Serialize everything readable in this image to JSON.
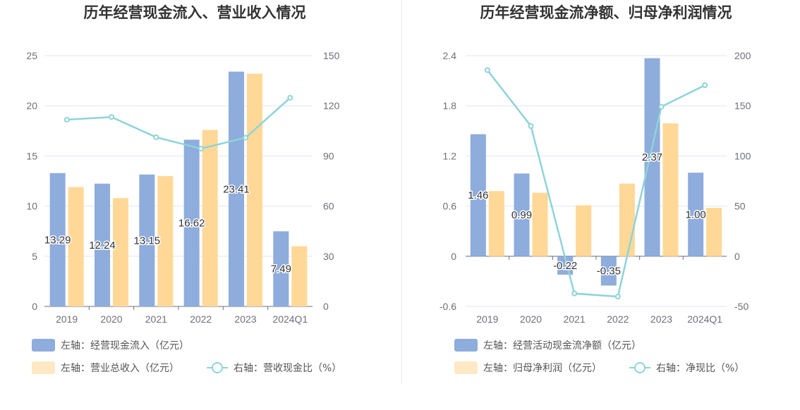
{
  "chart_data": [
    {
      "type": "bar",
      "title": "历年经营现金流入、营业收入情况",
      "categories": [
        "2019",
        "2020",
        "2021",
        "2022",
        "2023",
        "2024Q1"
      ],
      "y_left": {
        "min": 0,
        "max": 25,
        "ticks": [
          0,
          5,
          10,
          15,
          20,
          25
        ]
      },
      "y_right": {
        "min": 0,
        "max": 150,
        "ticks": [
          0,
          30,
          60,
          90,
          120,
          150
        ]
      },
      "grid": true,
      "legend_position": "bottom-left",
      "series": [
        {
          "name": "左轴：经营现金流入（亿元）",
          "kind": "bar",
          "axis": "left",
          "color": "#8eacdc",
          "values": [
            13.29,
            12.24,
            13.15,
            16.62,
            23.41,
            7.49
          ],
          "show_labels": true,
          "labels": [
            "13.29",
            "12.24",
            "13.15",
            "16.62",
            "23.41",
            "7.49"
          ]
        },
        {
          "name": "左轴：营业总收入（亿元）",
          "kind": "bar",
          "axis": "left",
          "color": "#ffd897",
          "legend_color": "#ffe8c4",
          "values": [
            11.9,
            10.8,
            13.0,
            17.6,
            23.2,
            6.0
          ],
          "show_labels": false
        },
        {
          "name": "右轴：营收现金比（%）",
          "kind": "line",
          "axis": "right",
          "color": "#8dd4d9",
          "values": [
            111.7,
            113.3,
            101.2,
            94.4,
            100.9,
            124.8
          ]
        }
      ]
    },
    {
      "type": "bar",
      "title": "历年经营现金流净额、归母净利润情况",
      "categories": [
        "2019",
        "2020",
        "2021",
        "2022",
        "2023",
        "2024Q1"
      ],
      "y_left": {
        "min": -0.6,
        "max": 2.4,
        "ticks": [
          "-0.6",
          "0",
          "0.6",
          "1.2",
          "1.8",
          "2.4"
        ]
      },
      "y_right": {
        "min": -50,
        "max": 200,
        "ticks": [
          -50,
          0,
          50,
          100,
          150,
          200
        ]
      },
      "grid": true,
      "legend_position": "bottom-left",
      "series": [
        {
          "name": "左轴：经营活动现金流净额（亿元）",
          "kind": "bar",
          "axis": "left",
          "color": "#8eacdc",
          "values": [
            1.46,
            0.99,
            -0.22,
            -0.35,
            2.37,
            1.0
          ],
          "show_labels": true,
          "labels": [
            "1.46",
            "0.99",
            "-0.22",
            "-0.35",
            "2.37",
            "1.00"
          ]
        },
        {
          "name": "左轴：归母净利润（亿元）",
          "kind": "bar",
          "axis": "left",
          "color": "#ffd897",
          "legend_color": "#ffe8c4",
          "values": [
            0.78,
            0.76,
            0.61,
            0.87,
            1.59,
            0.58
          ],
          "show_labels": false
        },
        {
          "name": "右轴：净现比（%）",
          "kind": "line",
          "axis": "right",
          "color": "#8dd4d9",
          "values": [
            185.6,
            129.9,
            -37.1,
            -40.2,
            149.1,
            170.5
          ]
        }
      ]
    }
  ]
}
